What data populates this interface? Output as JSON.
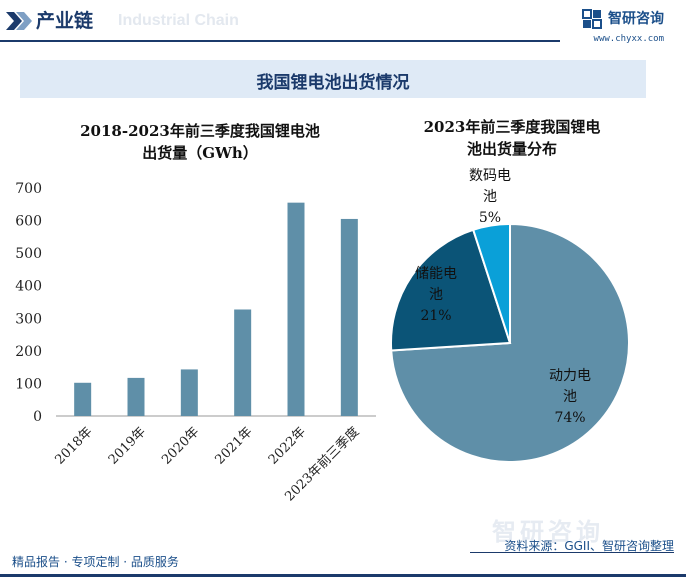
{
  "header": {
    "title": "产业链",
    "watermark": "Industrial Chain",
    "brand_name": "智研咨询",
    "brand_url": "www.chyxx.com"
  },
  "banner": {
    "title": "我国锂电池出货情况"
  },
  "footer": {
    "tagline": "精品报告 · 专项定制 · 品质服务",
    "source": "资料来源：GGII、智研咨询整理",
    "watermark": "智研咨询"
  },
  "colors": {
    "bar": "#5f8fa8",
    "pie_power": "#5f8fa8",
    "pie_storage": "#0b5477",
    "pie_digital": "#0aa0d8",
    "brand": "#1b3a6b"
  },
  "chart_data": [
    {
      "type": "bar",
      "title": "2018-2023年前三季度我国锂电池出货量（GWh）",
      "title_lines": [
        "2018-2023年前三季度我国锂电池",
        "出货量（GWh）"
      ],
      "categories": [
        "2018年",
        "2019年",
        "2020年",
        "2021年",
        "2022年",
        "2023年前三季度"
      ],
      "values": [
        102,
        117,
        143,
        327,
        655,
        605
      ],
      "ylim": [
        0,
        700
      ],
      "yticks": [
        0,
        100,
        200,
        300,
        400,
        500,
        600,
        700
      ],
      "grid": false
    },
    {
      "type": "pie",
      "title": "2023年前三季度我国锂电池出货量分布",
      "title_lines": [
        "2023年前三季度我国锂电",
        "池出货量分布"
      ],
      "slices": [
        {
          "label_lines": [
            "动力电",
            "池"
          ],
          "value": 74,
          "pct_label": "74%",
          "color": "#5f8fa8"
        },
        {
          "label_lines": [
            "储能电",
            "池"
          ],
          "value": 21,
          "pct_label": "21%",
          "color": "#0b5477"
        },
        {
          "label_lines": [
            "数码电",
            "池"
          ],
          "value": 5,
          "pct_label": "5%",
          "color": "#0aa0d8"
        }
      ]
    }
  ]
}
